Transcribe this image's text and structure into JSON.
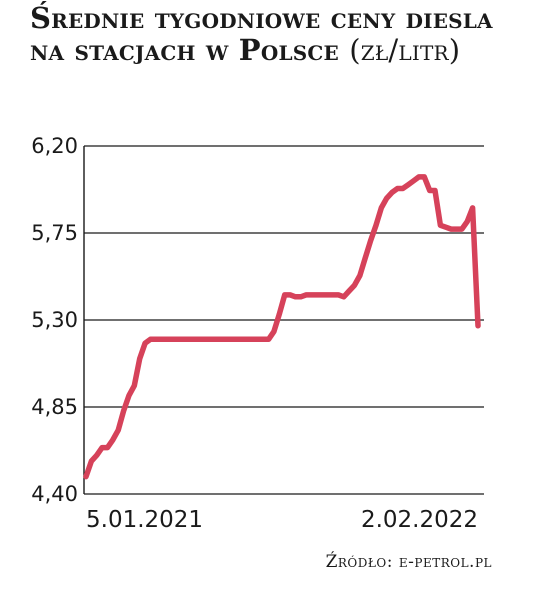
{
  "chart_data": {
    "type": "line",
    "title": "Średnie tygodniowe ceny diesla na stacjach w Polsce",
    "unit": "(zł/litr)",
    "ylim": [
      4.4,
      6.2
    ],
    "yticks": [
      "6,20",
      "5,75",
      "5,30",
      "4,85",
      "4,40"
    ],
    "ytick_values": [
      6.2,
      5.75,
      5.3,
      4.85,
      4.4
    ],
    "x_labels": [
      "5.01.2021",
      "2.02.2022"
    ],
    "grid": "horizontal",
    "line_color": "#d6425a",
    "series": [
      {
        "values": [
          4.49,
          4.57,
          4.6,
          4.64,
          4.64,
          4.68,
          4.73,
          4.83,
          4.91,
          4.96,
          5.1,
          5.18,
          5.2,
          5.2,
          5.2,
          5.2,
          5.2,
          5.2,
          5.2,
          5.2,
          5.2,
          5.2,
          5.2,
          5.2,
          5.2,
          5.2,
          5.2,
          5.2,
          5.2,
          5.2,
          5.2,
          5.2,
          5.2,
          5.2,
          5.2,
          5.24,
          5.33,
          5.43,
          5.43,
          5.42,
          5.42,
          5.43,
          5.43,
          5.43,
          5.43,
          5.43,
          5.43,
          5.43,
          5.42,
          5.45,
          5.48,
          5.53,
          5.62,
          5.71,
          5.79,
          5.88,
          5.93,
          5.96,
          5.98,
          5.98,
          6.0,
          6.02,
          6.04,
          6.04,
          5.97,
          5.97,
          5.79,
          5.78,
          5.77,
          5.77,
          5.77,
          5.81,
          5.88,
          5.27
        ]
      }
    ],
    "source": "Źródło: e-petrol.pl"
  }
}
